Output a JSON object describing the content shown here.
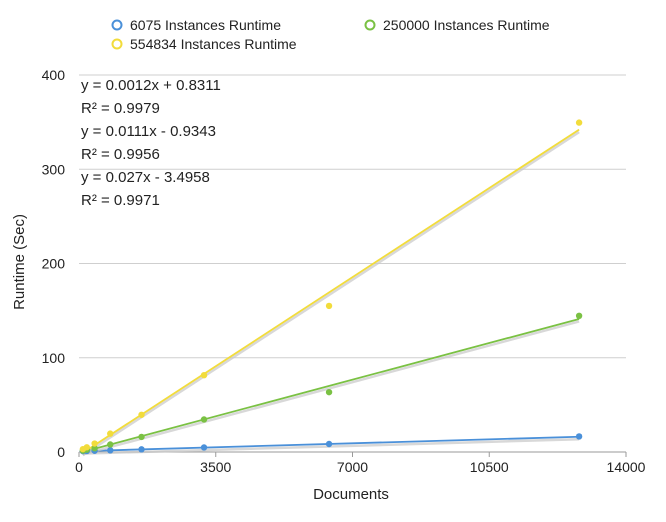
{
  "chart_data": {
    "type": "scatter",
    "title": "",
    "xlabel": "Documents",
    "ylabel": "Runtime (Sec)",
    "xlim": [
      0,
      14000
    ],
    "ylim": [
      0,
      400
    ],
    "x_ticks": [
      0,
      3500,
      7000,
      10500,
      14000
    ],
    "y_ticks": [
      0,
      100,
      200,
      300,
      400
    ],
    "grid": "horizontal",
    "legend_position": "top",
    "series": [
      {
        "name": "6075 Instances Runtime",
        "color": "#4a90d9",
        "points": [
          {
            "x": 100,
            "y": 0.9
          },
          {
            "x": 200,
            "y": 1.1
          },
          {
            "x": 400,
            "y": 1.3
          },
          {
            "x": 800,
            "y": 1.8
          },
          {
            "x": 1600,
            "y": 2.8
          },
          {
            "x": 3200,
            "y": 4.8
          },
          {
            "x": 6400,
            "y": 8.5
          },
          {
            "x": 12800,
            "y": 16.5
          }
        ],
        "trendline": {
          "slope": 0.0012,
          "intercept": 0.8311,
          "equation": "y = 0.0012x + 0.8311",
          "r2": "R² = 0.9979"
        }
      },
      {
        "name": "250000 Instances Runtime",
        "color": "#7ac143",
        "points": [
          {
            "x": 100,
            "y": 1.5
          },
          {
            "x": 200,
            "y": 2.5
          },
          {
            "x": 400,
            "y": 4.0
          },
          {
            "x": 800,
            "y": 8.0
          },
          {
            "x": 1600,
            "y": 16.0
          },
          {
            "x": 3200,
            "y": 34.5
          },
          {
            "x": 6400,
            "y": 63.5
          },
          {
            "x": 12800,
            "y": 144.5
          }
        ],
        "trendline": {
          "slope": 0.0111,
          "intercept": -0.9343,
          "equation": "y = 0.0111x - 0.9343",
          "r2": "R² = 0.9956"
        }
      },
      {
        "name": "554834 Instances Runtime",
        "color": "#f2dc3b",
        "points": [
          {
            "x": 100,
            "y": 3.0
          },
          {
            "x": 200,
            "y": 5.0
          },
          {
            "x": 400,
            "y": 9.0
          },
          {
            "x": 800,
            "y": 19.5
          },
          {
            "x": 1600,
            "y": 39.5
          },
          {
            "x": 3200,
            "y": 81.5
          },
          {
            "x": 6400,
            "y": 155.0
          },
          {
            "x": 12800,
            "y": 349.5
          }
        ],
        "trendline": {
          "slope": 0.027,
          "intercept": -3.4958,
          "equation": "y = 0.027x - 3.4958",
          "r2": "R² = 0.9971"
        }
      }
    ]
  }
}
